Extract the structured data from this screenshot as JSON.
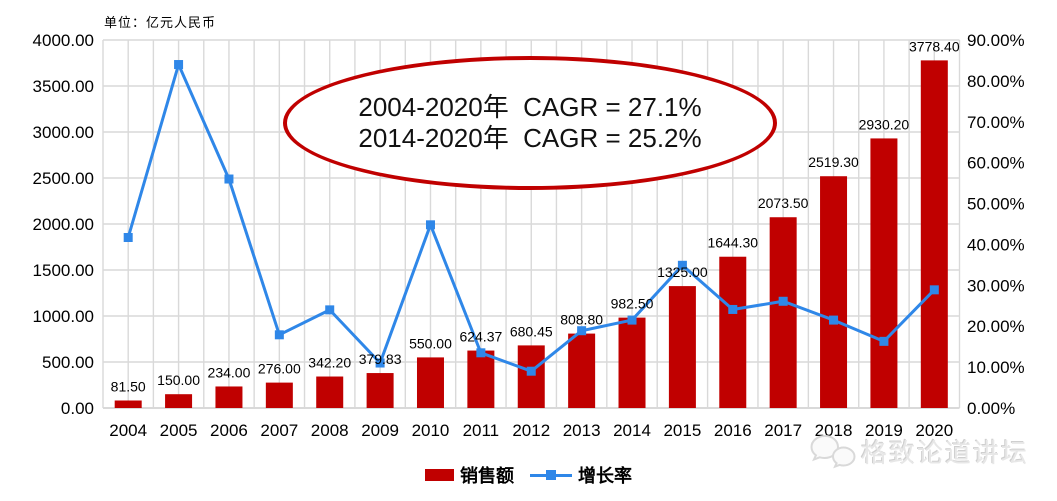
{
  "unit_label": "单位：亿元人民币",
  "annotation": {
    "line1": "2004-2020年  CAGR = 27.1%",
    "line2": "2014-2020年  CAGR = 25.2%"
  },
  "legend": {
    "items": [
      {
        "label": "销售额",
        "swatch": "bar",
        "color": "#C00000"
      },
      {
        "label": "增长率",
        "swatch": "line-marker",
        "color": "#2F87E8"
      }
    ]
  },
  "watermark": {
    "icon": "chat-bubbles-icon",
    "text": "格致论道讲坛"
  },
  "colors": {
    "bar": "#C00000",
    "line": "#2F87E8",
    "gridline": "#D9D9D9",
    "axis_text": "#000000",
    "annotation_border": "#C00000",
    "annotation_fill": "#FFFFFF",
    "watermark_text": "#E7E7E7"
  },
  "chart_data": {
    "type": "bar",
    "subtype": "combo-bar-line-dual-axis",
    "title": "",
    "categories": [
      "2004",
      "2005",
      "2006",
      "2007",
      "2008",
      "2009",
      "2010",
      "2011",
      "2012",
      "2013",
      "2014",
      "2015",
      "2016",
      "2017",
      "2018",
      "2019",
      "2020"
    ],
    "series": [
      {
        "name": "销售额",
        "type": "bar",
        "axis": "left",
        "unit": "亿元人民币",
        "values": [
          81.5,
          150.0,
          234.0,
          276.0,
          342.2,
          379.83,
          550.0,
          624.37,
          680.45,
          808.8,
          982.5,
          1325.0,
          1644.3,
          2073.5,
          2519.3,
          2930.2,
          3778.4
        ],
        "data_labels_visible": true
      },
      {
        "name": "增长率",
        "type": "line",
        "axis": "right",
        "unit": "%",
        "values": [
          41.7,
          84.0,
          56.0,
          17.9,
          24.0,
          11.0,
          44.8,
          13.5,
          9.0,
          18.9,
          21.5,
          34.9,
          24.1,
          26.1,
          21.5,
          16.3,
          28.9
        ],
        "data_labels_visible": false
      }
    ],
    "left_axis": {
      "min": 0,
      "max": 4000,
      "step": 500,
      "tick_format": "0.00"
    },
    "right_axis": {
      "min": 0,
      "max": 90,
      "step": 10,
      "tick_format": "0.00%"
    },
    "grid": true,
    "vertical_grid": true,
    "legend_position": "bottom"
  }
}
